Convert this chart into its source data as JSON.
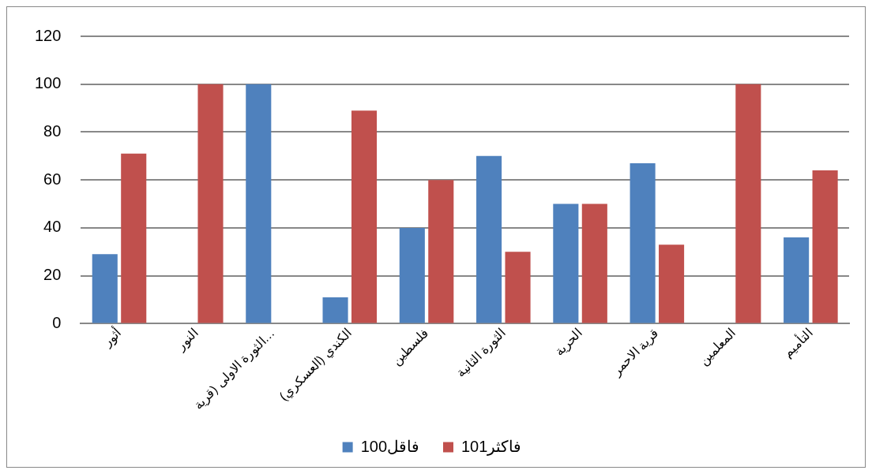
{
  "chart_data": {
    "type": "bar",
    "categories": [
      "أثور",
      "النور",
      "الثورة الاولى (قرية…",
      "الكندي (العسكري)",
      "فلسطين",
      "الثورة الثانية",
      "الحرية",
      "قرية الاحمر",
      "المعلمين",
      "التأميم"
    ],
    "series": [
      {
        "name": "100فاقل",
        "color": "#4f81bd",
        "values": [
          29,
          0,
          100,
          11,
          40,
          70,
          50,
          67,
          0,
          36
        ]
      },
      {
        "name": "101فاكثر",
        "color": "#c0504d",
        "values": [
          71,
          100,
          0,
          89,
          60,
          30,
          50,
          33,
          100,
          64
        ]
      }
    ],
    "ylim": [
      0,
      120
    ],
    "yticks": [
      0,
      20,
      40,
      60,
      80,
      100,
      120
    ],
    "grid": "y",
    "legend": "bottom"
  }
}
